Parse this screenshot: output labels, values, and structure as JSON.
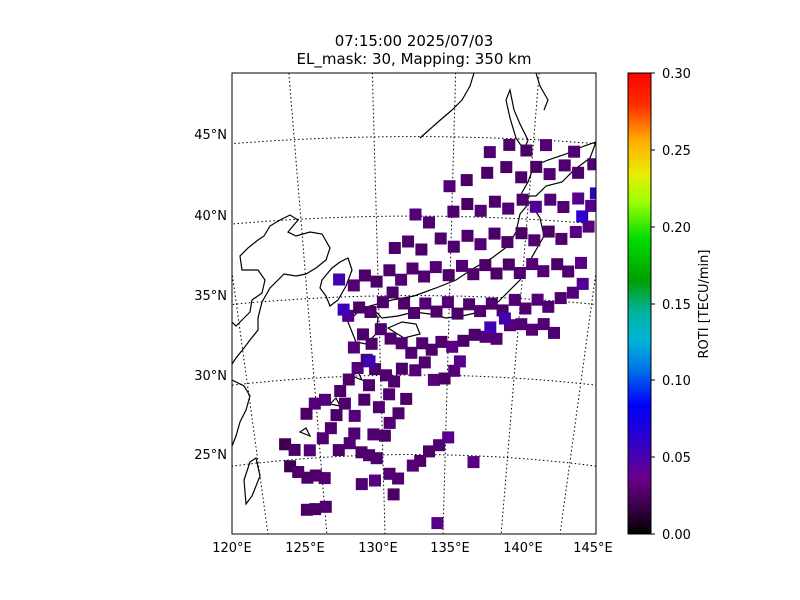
{
  "title": {
    "line1": "07:15:00 2025/07/03",
    "line2": "EL_mask: 30, Mapping: 350 km"
  },
  "map": {
    "lon_range": [
      120,
      145
    ],
    "lat_range": [
      20,
      49
    ],
    "lon_ticks": [
      "120°E",
      "125°E",
      "130°E",
      "135°E",
      "140°E",
      "145°E"
    ],
    "lat_ticks": [
      "25°N",
      "30°N",
      "35°N",
      "40°N",
      "45°N"
    ]
  },
  "colorbar": {
    "label": "ROTI [TECU/min]",
    "ticks": [
      "0.00",
      "0.05",
      "0.10",
      "0.15",
      "0.20",
      "0.25",
      "0.30"
    ],
    "range": [
      0,
      0.3
    ],
    "colormap": "nipy_spectral-like (black→purple→blue→cyan→green→yellow→red)"
  },
  "roti_points": [
    [
      122.5,
      24.6,
      0.02
    ],
    [
      123.1,
      24.2,
      0.03
    ],
    [
      123.8,
      23.8,
      0.03
    ],
    [
      124.5,
      23.9,
      0.03
    ],
    [
      125.2,
      23.7,
      0.03
    ],
    [
      122.3,
      26.0,
      0.02
    ],
    [
      123.0,
      25.6,
      0.03
    ],
    [
      124.2,
      25.5,
      0.03
    ],
    [
      125.3,
      26.2,
      0.03
    ],
    [
      126.0,
      26.8,
      0.03
    ],
    [
      126.5,
      25.4,
      0.03
    ],
    [
      127.4,
      25.8,
      0.03
    ],
    [
      127.8,
      26.4,
      0.03
    ],
    [
      128.3,
      25.2,
      0.03
    ],
    [
      128.9,
      25.0,
      0.03
    ],
    [
      129.5,
      24.8,
      0.03
    ],
    [
      129.3,
      26.3,
      0.03
    ],
    [
      130.2,
      26.2,
      0.03
    ],
    [
      130.6,
      27.0,
      0.03
    ],
    [
      131.3,
      27.6,
      0.03
    ],
    [
      131.9,
      28.5,
      0.03
    ],
    [
      124.2,
      27.8,
      0.03
    ],
    [
      124.9,
      28.4,
      0.03
    ],
    [
      125.7,
      28.6,
      0.03
    ],
    [
      126.5,
      27.6,
      0.03
    ],
    [
      127.2,
      28.3,
      0.03
    ],
    [
      127.9,
      27.5,
      0.03
    ],
    [
      128.7,
      28.5,
      0.03
    ],
    [
      129.1,
      29.4,
      0.03
    ],
    [
      129.8,
      28.0,
      0.03
    ],
    [
      130.6,
      28.8,
      0.03
    ],
    [
      126.9,
      29.1,
      0.03
    ],
    [
      127.6,
      29.8,
      0.03
    ],
    [
      128.3,
      30.5,
      0.03
    ],
    [
      129.0,
      31.0,
      0.03
    ],
    [
      129.6,
      30.4,
      0.03
    ],
    [
      130.4,
      30.0,
      0.03
    ],
    [
      131.0,
      29.6,
      0.03
    ],
    [
      131.6,
      30.4,
      0.03
    ],
    [
      132.6,
      30.3,
      0.03
    ],
    [
      133.3,
      30.8,
      0.03
    ],
    [
      134.0,
      29.7,
      0.035
    ],
    [
      134.8,
      29.8,
      0.03
    ],
    [
      135.5,
      30.3,
      0.03
    ],
    [
      135.9,
      30.9,
      0.04
    ],
    [
      132.4,
      24.3,
      0.03
    ],
    [
      133.0,
      24.6,
      0.03
    ],
    [
      133.7,
      25.2,
      0.03
    ],
    [
      134.5,
      25.6,
      0.03
    ],
    [
      135.2,
      26.1,
      0.04
    ],
    [
      130.5,
      23.8,
      0.03
    ],
    [
      131.2,
      23.5,
      0.03
    ],
    [
      130.8,
      22.5,
      0.03
    ],
    [
      134.5,
      20.7,
      0.04
    ],
    [
      137.3,
      24.6,
      0.035
    ],
    [
      123.5,
      21.8,
      0.03
    ],
    [
      124.2,
      21.8,
      0.03
    ],
    [
      125.1,
      21.9,
      0.03
    ],
    [
      128.2,
      23.2,
      0.03
    ],
    [
      129.3,
      23.4,
      0.035
    ],
    [
      128.1,
      31.8,
      0.03
    ],
    [
      128.8,
      32.6,
      0.03
    ],
    [
      129.4,
      32.0,
      0.03
    ],
    [
      130.1,
      32.9,
      0.03
    ],
    [
      130.8,
      32.3,
      0.03
    ],
    [
      131.6,
      32.0,
      0.03
    ],
    [
      132.3,
      31.4,
      0.03
    ],
    [
      133.1,
      32.0,
      0.03
    ],
    [
      133.8,
      31.6,
      0.03
    ],
    [
      134.5,
      32.1,
      0.03
    ],
    [
      135.3,
      31.8,
      0.035
    ],
    [
      136.1,
      32.2,
      0.03
    ],
    [
      136.9,
      32.6,
      0.03
    ],
    [
      137.7,
      32.5,
      0.03
    ],
    [
      138.5,
      32.4,
      0.03
    ],
    [
      139.4,
      33.3,
      0.03
    ],
    [
      140.2,
      33.4,
      0.03
    ],
    [
      141.0,
      33.1,
      0.03
    ],
    [
      141.8,
      33.5,
      0.03
    ],
    [
      142.6,
      33.0,
      0.03
    ],
    [
      127.8,
      33.8,
      0.04
    ],
    [
      128.6,
      34.3,
      0.03
    ],
    [
      129.4,
      34.0,
      0.03
    ],
    [
      130.3,
      34.6,
      0.03
    ],
    [
      131.0,
      35.2,
      0.03
    ],
    [
      131.8,
      34.5,
      0.03
    ],
    [
      132.5,
      33.9,
      0.03
    ],
    [
      133.3,
      34.5,
      0.03
    ],
    [
      134.1,
      34.0,
      0.03
    ],
    [
      134.9,
      34.6,
      0.03
    ],
    [
      135.6,
      33.9,
      0.03
    ],
    [
      136.4,
      34.5,
      0.03
    ],
    [
      137.2,
      34.1,
      0.03
    ],
    [
      138.0,
      34.6,
      0.03
    ],
    [
      138.8,
      34.2,
      0.03
    ],
    [
      139.6,
      34.9,
      0.03
    ],
    [
      140.4,
      34.4,
      0.03
    ],
    [
      141.2,
      35.0,
      0.03
    ],
    [
      142.0,
      34.6,
      0.03
    ],
    [
      142.8,
      35.2,
      0.03
    ],
    [
      143.6,
      35.6,
      0.035
    ],
    [
      144.2,
      36.2,
      0.04
    ],
    [
      128.3,
      35.7,
      0.03
    ],
    [
      129.1,
      36.3,
      0.03
    ],
    [
      129.9,
      35.9,
      0.03
    ],
    [
      130.8,
      36.6,
      0.03
    ],
    [
      131.6,
      36.0,
      0.03
    ],
    [
      132.4,
      36.7,
      0.03
    ],
    [
      133.2,
      36.2,
      0.03
    ],
    [
      134.0,
      36.8,
      0.03
    ],
    [
      134.9,
      36.3,
      0.03
    ],
    [
      135.8,
      36.9,
      0.03
    ],
    [
      136.6,
      36.4,
      0.03
    ],
    [
      137.4,
      37.0,
      0.03
    ],
    [
      138.2,
      36.5,
      0.03
    ],
    [
      139.0,
      37.1,
      0.03
    ],
    [
      139.8,
      36.6,
      0.03
    ],
    [
      140.6,
      37.2,
      0.03
    ],
    [
      141.4,
      36.8,
      0.03
    ],
    [
      142.3,
      37.3,
      0.03
    ],
    [
      143.1,
      36.9,
      0.03
    ],
    [
      143.9,
      37.5,
      0.04
    ],
    [
      131.2,
      38.0,
      0.03
    ],
    [
      132.1,
      38.4,
      0.03
    ],
    [
      133.0,
      37.9,
      0.03
    ],
    [
      134.3,
      38.6,
      0.03
    ],
    [
      135.2,
      38.1,
      0.03
    ],
    [
      136.1,
      38.8,
      0.03
    ],
    [
      137.0,
      38.3,
      0.03
    ],
    [
      137.9,
      39.0,
      0.03
    ],
    [
      138.8,
      38.5,
      0.03
    ],
    [
      139.7,
      39.1,
      0.03
    ],
    [
      140.6,
      38.7,
      0.03
    ],
    [
      141.5,
      39.3,
      0.03
    ],
    [
      142.4,
      38.9,
      0.03
    ],
    [
      143.3,
      39.4,
      0.04
    ],
    [
      144.1,
      39.8,
      0.035
    ],
    [
      135.1,
      40.3,
      0.03
    ],
    [
      136.0,
      40.8,
      0.03
    ],
    [
      136.9,
      40.4,
      0.03
    ],
    [
      137.8,
      41.0,
      0.03
    ],
    [
      138.7,
      40.6,
      0.03
    ],
    [
      139.6,
      41.2,
      0.03
    ],
    [
      140.5,
      40.8,
      0.04
    ],
    [
      141.4,
      41.3,
      0.03
    ],
    [
      142.3,
      40.9,
      0.03
    ],
    [
      143.2,
      41.5,
      0.04
    ],
    [
      144.1,
      41.1,
      0.04
    ],
    [
      144.8,
      41.6,
      0.04
    ],
    [
      134.8,
      41.9,
      0.03
    ],
    [
      135.9,
      42.3,
      0.03
    ],
    [
      137.2,
      42.8,
      0.03
    ],
    [
      138.4,
      43.2,
      0.03
    ],
    [
      139.4,
      42.6,
      0.03
    ],
    [
      140.3,
      43.3,
      0.03
    ],
    [
      141.2,
      42.9,
      0.03
    ],
    [
      142.1,
      43.5,
      0.03
    ],
    [
      143.0,
      43.1,
      0.03
    ],
    [
      143.9,
      43.7,
      0.03
    ],
    [
      144.6,
      44.2,
      0.03
    ],
    [
      137.3,
      44.1,
      0.03
    ],
    [
      138.5,
      44.6,
      0.03
    ],
    [
      139.6,
      44.3,
      0.03
    ],
    [
      140.8,
      44.7,
      0.03
    ],
    [
      142.6,
      44.4,
      0.03
    ],
    [
      145.0,
      45.4,
      0.03
    ],
    [
      132.6,
      40.1,
      0.03
    ],
    [
      133.5,
      39.6,
      0.03
    ],
    [
      127.3,
      36.1,
      0.05
    ],
    [
      127.5,
      34.2,
      0.05
    ],
    [
      129.2,
      30.9,
      0.05
    ],
    [
      138.0,
      33.1,
      0.05
    ],
    [
      139.0,
      33.7,
      0.05
    ],
    [
      143.6,
      40.4,
      0.06
    ],
    [
      144.3,
      41.9,
      0.055
    ]
  ]
}
